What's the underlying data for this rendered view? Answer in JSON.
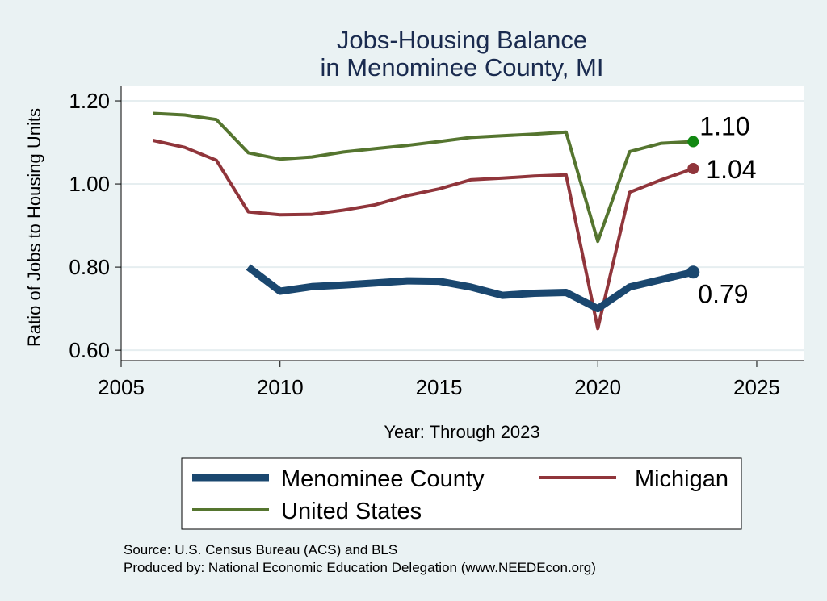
{
  "colors": {
    "background": "#eaf2f3",
    "plot_bg": "#ffffff",
    "grid": "#e6eef0",
    "county": "#1a476f",
    "michigan": "#90353b",
    "us": "#55752f",
    "us_marker": "#118811",
    "title": "#1a2b4f"
  },
  "chart_data": {
    "type": "line",
    "title": "Jobs-Housing Balance",
    "subtitle": "in Menominee County, MI",
    "xlabel": "Year: Through 2023",
    "ylabel": "Ratio of Jobs to Housing Units",
    "xlim": [
      2005,
      2026.5
    ],
    "ylim": [
      0.575,
      1.235
    ],
    "xticks": [
      2005,
      2010,
      2015,
      2020,
      2025
    ],
    "xtick_labels": [
      "2005",
      "2010",
      "2015",
      "2020",
      "2025"
    ],
    "yticks": [
      0.6,
      0.8,
      1.0,
      1.2
    ],
    "ytick_labels": [
      "0.60",
      "0.80",
      "1.00",
      "1.20"
    ],
    "grid": true,
    "series": [
      {
        "name": "United States",
        "key": "us",
        "x": [
          2006,
          2007,
          2008,
          2009,
          2010,
          2011,
          2012,
          2013,
          2014,
          2015,
          2016,
          2017,
          2018,
          2019,
          2020,
          2021,
          2022,
          2023
        ],
        "values": [
          1.17,
          1.166,
          1.155,
          1.075,
          1.06,
          1.065,
          1.077,
          1.085,
          1.093,
          1.102,
          1.112,
          1.116,
          1.12,
          1.125,
          0.862,
          1.078,
          1.098,
          1.102
        ],
        "end_label": "1.10"
      },
      {
        "name": "Michigan",
        "key": "michigan",
        "x": [
          2006,
          2007,
          2008,
          2009,
          2010,
          2011,
          2012,
          2013,
          2014,
          2015,
          2016,
          2017,
          2018,
          2019,
          2020,
          2021,
          2022,
          2023
        ],
        "values": [
          1.105,
          1.088,
          1.057,
          0.933,
          0.926,
          0.927,
          0.937,
          0.95,
          0.972,
          0.988,
          1.01,
          1.014,
          1.019,
          1.022,
          0.652,
          0.98,
          1.01,
          1.037
        ],
        "end_label": "1.04"
      },
      {
        "name": "Menominee County",
        "key": "county",
        "x": [
          2009,
          2010,
          2011,
          2012,
          2013,
          2014,
          2015,
          2016,
          2017,
          2018,
          2019,
          2020,
          2021,
          2022,
          2023
        ],
        "values": [
          0.8,
          0.742,
          0.753,
          0.757,
          0.762,
          0.767,
          0.766,
          0.752,
          0.732,
          0.737,
          0.739,
          0.7,
          0.752,
          0.77,
          0.788
        ],
        "end_label": "0.79"
      }
    ],
    "legend": {
      "position": "bottom",
      "entries": [
        "Menominee County",
        "Michigan",
        "United States"
      ]
    },
    "source_lines": [
      "Source: U.S. Census Bureau (ACS) and BLS",
      "Produced by: National Economic Education Delegation (www.NEEDEcon.org)"
    ]
  }
}
